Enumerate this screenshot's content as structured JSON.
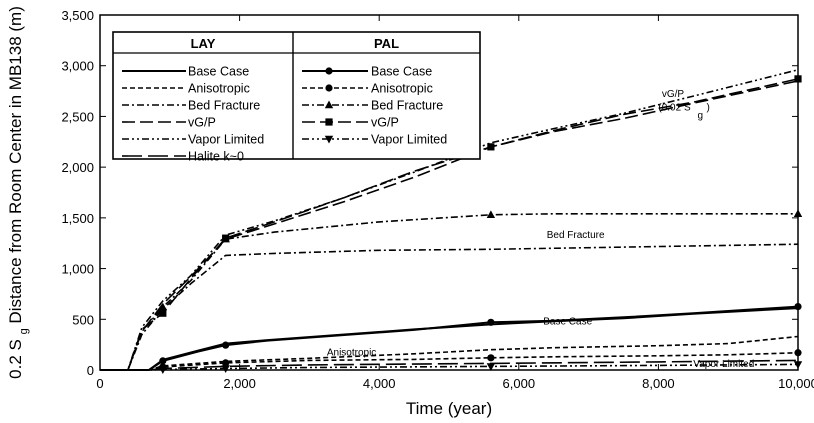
{
  "chart_data": {
    "type": "line",
    "xlabel": "Time (year)",
    "ylabel_prefix": "0.2 S",
    "ylabel_sub": "g",
    "ylabel_suffix": "Distance from Room Center in MB138 (m)",
    "xlim": [
      0,
      10000
    ],
    "ylim": [
      0,
      3500
    ],
    "x_ticks": [
      0,
      2000,
      4000,
      6000,
      8000,
      10000
    ],
    "x_tick_labels": [
      "0",
      "2,000",
      "4,000",
      "6,000",
      "8,000",
      "10,000"
    ],
    "y_ticks": [
      0,
      500,
      1000,
      1500,
      2000,
      2500,
      3000,
      3500
    ],
    "y_tick_labels": [
      "0",
      "500",
      "1,000",
      "1,500",
      "2,000",
      "2,500",
      "3,000",
      "3,500"
    ],
    "legend": {
      "placement": "top-left",
      "groups": [
        {
          "header": "LAY",
          "entries": [
            {
              "label": "Base Case",
              "style": "solid",
              "marker": null
            },
            {
              "label": "Anisotropic",
              "style": "short-dash",
              "marker": null
            },
            {
              "label": "Bed Fracture",
              "style": "dash-dot",
              "marker": null
            },
            {
              "label": "vG/P",
              "style": "long-dash",
              "marker": null
            },
            {
              "label": "Vapor Limited",
              "style": "dash-dot-dot",
              "marker": null
            },
            {
              "label": "Halite k~0",
              "style": "very-long-dash",
              "marker": null
            }
          ]
        },
        {
          "header": "PAL",
          "entries": [
            {
              "label": "Base Case",
              "style": "solid",
              "marker": "circle"
            },
            {
              "label": "Anisotropic",
              "style": "short-dash",
              "marker": "circle"
            },
            {
              "label": "Bed Fracture",
              "style": "dash-dot",
              "marker": "triangle-up"
            },
            {
              "label": "vG/P",
              "style": "long-dash",
              "marker": "square"
            },
            {
              "label": "Vapor Limited",
              "style": "dash-dot-dot",
              "marker": "triangle-down"
            }
          ]
        }
      ]
    },
    "annotations": [
      {
        "text": "vG/P",
        "x": 8050,
        "y": 2690
      },
      {
        "text": "(0.02 S",
        "x": 8000,
        "y": 2560
      },
      {
        "text": "g",
        "x": 8560,
        "y": 2480
      },
      {
        "text": ")",
        "x": 8690,
        "y": 2560
      },
      {
        "text": "Bed Fracture",
        "x": 6400,
        "y": 1300
      },
      {
        "text": "Base Case",
        "x": 6350,
        "y": 450
      },
      {
        "text": "Anisotropic",
        "x": 3250,
        "y": 145
      },
      {
        "text": "Vapor Limited",
        "x": 8500,
        "y": 30
      }
    ],
    "series": [
      {
        "group": "LAY",
        "name": "Base Case",
        "style": "solid",
        "marker": null,
        "x": [
          0,
          250,
          500,
          700,
          900,
          1400,
          1800,
          2400,
          3500,
          4500,
          5600,
          6500,
          7500,
          8500,
          10000
        ],
        "y": [
          0,
          0,
          0,
          0,
          100,
          190,
          260,
          295,
          350,
          400,
          450,
          480,
          510,
          555,
          610
        ]
      },
      {
        "group": "LAY",
        "name": "Anisotropic",
        "style": "short-dash",
        "marker": null,
        "x": [
          0,
          700,
          900,
          1800,
          3000,
          4500,
          5600,
          6500,
          8000,
          9000,
          10000
        ],
        "y": [
          0,
          0,
          40,
          85,
          115,
          160,
          200,
          220,
          240,
          260,
          330
        ]
      },
      {
        "group": "LAY",
        "name": "Bed Fracture",
        "style": "dash-dot",
        "marker": null,
        "x": [
          0,
          400,
          600,
          900,
          1300,
          1800,
          2500,
          4000,
          5600,
          10000
        ],
        "y": [
          0,
          0,
          350,
          600,
          850,
          1130,
          1150,
          1180,
          1190,
          1240
        ]
      },
      {
        "group": "LAY",
        "name": "vG/P",
        "style": "long-dash",
        "marker": null,
        "x": [
          0,
          400,
          600,
          900,
          1300,
          1800,
          2500,
          3500,
          4500,
          5600,
          6500,
          7500,
          8500,
          10000
        ],
        "y": [
          0,
          0,
          380,
          650,
          920,
          1290,
          1440,
          1660,
          1900,
          2200,
          2350,
          2480,
          2630,
          2850
        ]
      },
      {
        "group": "LAY",
        "name": "Vapor Limited",
        "style": "dash-dot-dot",
        "marker": null,
        "x": [
          0,
          400,
          600,
          900,
          1300,
          1800,
          2500,
          3500,
          4500,
          5600,
          6500,
          7500,
          8500,
          10000
        ],
        "y": [
          0,
          0,
          420,
          680,
          930,
          1330,
          1470,
          1700,
          1950,
          2240,
          2380,
          2530,
          2700,
          2960
        ]
      },
      {
        "group": "LAY",
        "name": "Halite k~0",
        "style": "very-long-dash",
        "marker": null,
        "x": [
          0,
          700,
          900,
          1800,
          3000,
          5600,
          8000,
          10000
        ],
        "y": [
          0,
          0,
          15,
          35,
          50,
          65,
          80,
          95
        ]
      },
      {
        "group": "PAL",
        "name": "Base Case",
        "style": "solid",
        "marker": "circle",
        "x": [
          0,
          250,
          500,
          700,
          900,
          1400,
          1800,
          2400,
          3500,
          4500,
          5600,
          6500,
          7500,
          8500,
          10000
        ],
        "y": [
          0,
          0,
          0,
          0,
          90,
          180,
          245,
          290,
          345,
          395,
          470,
          485,
          520,
          560,
          625
        ]
      },
      {
        "group": "PAL",
        "name": "Anisotropic",
        "style": "short-dash",
        "marker": "circle",
        "x": [
          0,
          700,
          900,
          1800,
          3000,
          4500,
          5600,
          6500,
          8000,
          9000,
          10000
        ],
        "y": [
          0,
          0,
          30,
          70,
          95,
          105,
          120,
          130,
          140,
          150,
          170
        ]
      },
      {
        "group": "PAL",
        "name": "Bed Fracture",
        "style": "dash-dot",
        "marker": "triangle-up",
        "x": [
          0,
          400,
          600,
          900,
          1300,
          1800,
          2500,
          4000,
          5600,
          6500,
          8000,
          10000
        ],
        "y": [
          0,
          0,
          380,
          620,
          880,
          1290,
          1360,
          1460,
          1530,
          1540,
          1540,
          1540
        ]
      },
      {
        "group": "PAL",
        "name": "vG/P",
        "style": "long-dash",
        "marker": "square",
        "x": [
          0,
          400,
          600,
          900,
          1300,
          1800,
          2500,
          3500,
          4500,
          5600,
          6500,
          7500,
          8500,
          10000
        ],
        "y": [
          0,
          0,
          400,
          560,
          900,
          1300,
          1460,
          1700,
          1960,
          2200,
          2360,
          2520,
          2640,
          2870
        ]
      },
      {
        "group": "PAL",
        "name": "Vapor Limited",
        "style": "dash-dot-dot",
        "marker": "triangle-down",
        "x": [
          0,
          700,
          900,
          1800,
          3000,
          5600,
          8000,
          10000
        ],
        "y": [
          0,
          0,
          5,
          15,
          25,
          35,
          45,
          55
        ]
      }
    ]
  }
}
